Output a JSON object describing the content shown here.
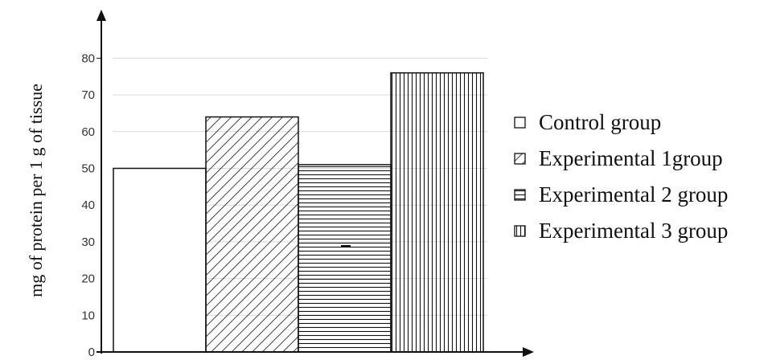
{
  "chart_data": {
    "type": "bar",
    "title": "",
    "xlabel": "",
    "ylabel": "mg of protein per 1 g of tissue",
    "ylim": [
      0,
      80
    ],
    "yticks": [
      0,
      10,
      20,
      30,
      40,
      50,
      60,
      70,
      80
    ],
    "grid": true,
    "legend_position": "right",
    "series": [
      {
        "name": "Control group",
        "values": [
          50
        ],
        "pattern": "none"
      },
      {
        "name": "Experimental 1group",
        "values": [
          64
        ],
        "pattern": "diagonal"
      },
      {
        "name": "Experimental 2 group",
        "values": [
          51
        ],
        "pattern": "horizontal"
      },
      {
        "name": "Experimental 3 group",
        "values": [
          76
        ],
        "pattern": "vertical"
      }
    ],
    "colors": {
      "stroke": "#111111",
      "grid": "#d9d9d9",
      "fill": "#ffffff"
    }
  }
}
